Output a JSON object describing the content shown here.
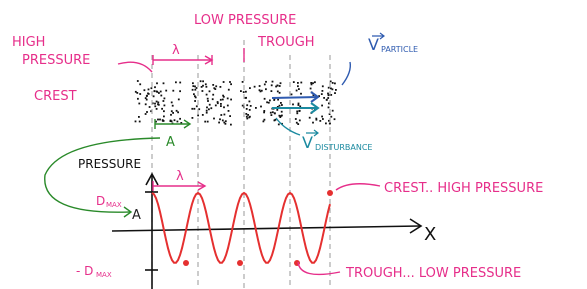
{
  "labels": {
    "high_pressure_crest": [
      "HIGH",
      "PRESSURE",
      "CREST"
    ],
    "low_pressure_trough": [
      "LOW PRESSURE",
      "TROUGH"
    ],
    "wavelength_top": "λ",
    "wavelength_graph": "λ",
    "v_particle": {
      "symbol": "V",
      "subscript": "PARTICLE"
    },
    "v_disturbance": {
      "symbol": "V",
      "subscript": "DISTURBANCE"
    },
    "amplitude_top": "A",
    "amplitude_graph": "A",
    "y_axis": "PRESSURE",
    "d_max": {
      "symbol": "D",
      "subscript": "MAX"
    },
    "neg_d_max": {
      "symbol": "- D",
      "subscript": "MAX"
    },
    "x_axis": "X",
    "crest_note": "CREST.. HIGH PRESSURE",
    "trough_note": "TROUGH... LOW PRESSURE"
  }
}
